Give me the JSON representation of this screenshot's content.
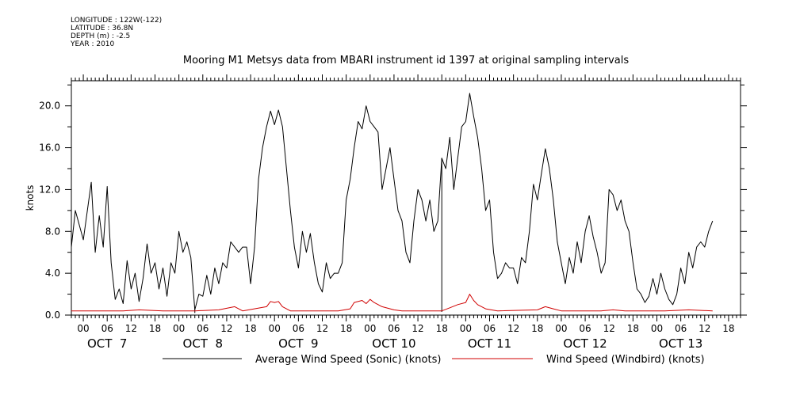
{
  "header": {
    "metadata": [
      "LONGITUDE : 122W(-122)",
      "LATITUDE : 36.8N",
      "DEPTH (m) : -2.5",
      "YEAR : 2010"
    ]
  },
  "chart_data": {
    "type": "line",
    "title": "Mooring M1 Metsys data from MBARI instrument id 1397 at original sampling intervals",
    "xlabel": "",
    "ylabel": "knots",
    "ylim": [
      0,
      22.4
    ],
    "yticks": [
      "0.0",
      "4.0",
      "8.0",
      "12.0",
      "16.0",
      "20.0"
    ],
    "ytick_values": [
      0,
      4,
      8,
      12,
      16,
      20
    ],
    "x_unit": "hours from OCT 7 00:00 (2010)",
    "xlim": [
      -3,
      165
    ],
    "xtick_labels": [
      "00",
      "06",
      "12",
      "18",
      "00",
      "06",
      "12",
      "18",
      "00",
      "06",
      "12",
      "18",
      "00",
      "06",
      "12",
      "18",
      "00",
      "06",
      "12",
      "18",
      "00",
      "06",
      "12",
      "18",
      "00",
      "06",
      "12",
      "18"
    ],
    "xtick_hours": [
      0,
      6,
      12,
      18,
      24,
      30,
      36,
      42,
      48,
      54,
      60,
      66,
      72,
      78,
      84,
      90,
      96,
      102,
      108,
      114,
      120,
      126,
      132,
      138,
      144,
      150,
      156,
      162
    ],
    "day_labels": [
      "OCT  7",
      "OCT  8",
      "OCT  9",
      "OCT 10",
      "OCT 11",
      "OCT 12",
      "OCT 13"
    ],
    "day_hours": [
      6,
      30,
      54,
      78,
      102,
      126,
      150
    ],
    "grid": false,
    "legend_position": "bottom",
    "series": [
      {
        "name": "Average Wind Speed (Sonic) (knots)",
        "color": "#000000",
        "points": [
          [
            -3,
            6.5
          ],
          [
            -2,
            10.0
          ],
          [
            0,
            7.2
          ],
          [
            2,
            12.7
          ],
          [
            3,
            6.0
          ],
          [
            4,
            9.5
          ],
          [
            5,
            6.5
          ],
          [
            6,
            12.3
          ],
          [
            7,
            5.0
          ],
          [
            8,
            1.5
          ],
          [
            9,
            2.5
          ],
          [
            10,
            1.1
          ],
          [
            11,
            5.2
          ],
          [
            12,
            2.5
          ],
          [
            13,
            4.0
          ],
          [
            14,
            1.3
          ],
          [
            15,
            3.5
          ],
          [
            16,
            6.8
          ],
          [
            17,
            4.0
          ],
          [
            18,
            5.0
          ],
          [
            19,
            2.5
          ],
          [
            20,
            4.5
          ],
          [
            21,
            1.8
          ],
          [
            22,
            5.0
          ],
          [
            23,
            4.0
          ],
          [
            24,
            8.0
          ],
          [
            25,
            6.0
          ],
          [
            26,
            7.0
          ],
          [
            27,
            5.5
          ],
          [
            28,
            0.5
          ],
          [
            29,
            2.0
          ],
          [
            30,
            1.8
          ],
          [
            31,
            3.8
          ],
          [
            32,
            2.0
          ],
          [
            33,
            4.5
          ],
          [
            34,
            3.0
          ],
          [
            35,
            5.0
          ],
          [
            36,
            4.5
          ],
          [
            37,
            7.0
          ],
          [
            38,
            6.5
          ],
          [
            39,
            6.0
          ],
          [
            40,
            6.5
          ],
          [
            41,
            6.5
          ],
          [
            42,
            3.0
          ],
          [
            43,
            6.5
          ],
          [
            44,
            13.0
          ],
          [
            45,
            16.0
          ],
          [
            46,
            18.0
          ],
          [
            47,
            19.5
          ],
          [
            48,
            18.2
          ],
          [
            49,
            19.6
          ],
          [
            50,
            18.0
          ],
          [
            51,
            14.0
          ],
          [
            52,
            10.0
          ],
          [
            53,
            6.5
          ],
          [
            54,
            4.5
          ],
          [
            55,
            8.0
          ],
          [
            56,
            6.0
          ],
          [
            57,
            7.8
          ],
          [
            58,
            5.0
          ],
          [
            59,
            3.0
          ],
          [
            60,
            2.2
          ],
          [
            61,
            5.0
          ],
          [
            62,
            3.5
          ],
          [
            63,
            4.0
          ],
          [
            64,
            4.0
          ],
          [
            65,
            5.0
          ],
          [
            66,
            11.0
          ],
          [
            67,
            13.0
          ],
          [
            68,
            16.0
          ],
          [
            69,
            18.5
          ],
          [
            70,
            17.8
          ],
          [
            71,
            20.0
          ],
          [
            72,
            18.5
          ],
          [
            73,
            18.0
          ],
          [
            74,
            17.5
          ],
          [
            75,
            12.0
          ],
          [
            76,
            14.0
          ],
          [
            77,
            16.0
          ],
          [
            78,
            13.0
          ],
          [
            79,
            10.0
          ],
          [
            80,
            9.0
          ],
          [
            81,
            6.0
          ],
          [
            82,
            5.0
          ],
          [
            83,
            9.0
          ],
          [
            84,
            12.0
          ],
          [
            85,
            11.0
          ],
          [
            86,
            9.0
          ],
          [
            87,
            11.0
          ],
          [
            88,
            8.0
          ],
          [
            89,
            9.0
          ],
          [
            90,
            15.0
          ],
          [
            91,
            14.0
          ],
          [
            92,
            17.0
          ],
          [
            93,
            12.0
          ],
          [
            94,
            15.0
          ],
          [
            95,
            18.0
          ],
          [
            96,
            18.5
          ],
          [
            97,
            21.2
          ],
          [
            98,
            19.0
          ],
          [
            99,
            17.0
          ],
          [
            100,
            14.0
          ],
          [
            101,
            10.0
          ],
          [
            102,
            11.0
          ],
          [
            103,
            6.0
          ],
          [
            104,
            3.5
          ],
          [
            105,
            4.0
          ],
          [
            106,
            5.0
          ],
          [
            107,
            4.5
          ],
          [
            108,
            4.5
          ],
          [
            109,
            3.0
          ],
          [
            110,
            5.5
          ],
          [
            111,
            5.0
          ],
          [
            112,
            8.0
          ],
          [
            113,
            12.5
          ],
          [
            114,
            11.0
          ],
          [
            115,
            13.5
          ],
          [
            116,
            15.9
          ],
          [
            117,
            14.0
          ],
          [
            118,
            11.0
          ],
          [
            119,
            7.0
          ],
          [
            120,
            5.0
          ],
          [
            121,
            3.0
          ],
          [
            122,
            5.5
          ],
          [
            123,
            4.0
          ],
          [
            124,
            7.0
          ],
          [
            125,
            5.0
          ],
          [
            126,
            8.0
          ],
          [
            127,
            9.5
          ],
          [
            128,
            7.5
          ],
          [
            129,
            6.0
          ],
          [
            130,
            4.0
          ],
          [
            131,
            5.0
          ],
          [
            132,
            12.0
          ],
          [
            133,
            11.5
          ],
          [
            134,
            10.0
          ],
          [
            135,
            11.0
          ],
          [
            136,
            9.0
          ],
          [
            137,
            8.0
          ],
          [
            138,
            5.0
          ],
          [
            139,
            2.5
          ],
          [
            140,
            2.0
          ],
          [
            141,
            1.2
          ],
          [
            142,
            1.8
          ],
          [
            143,
            3.5
          ],
          [
            144,
            2.0
          ],
          [
            145,
            4.0
          ],
          [
            146,
            2.5
          ],
          [
            147,
            1.5
          ],
          [
            148,
            1.0
          ],
          [
            149,
            2.0
          ],
          [
            150,
            4.5
          ],
          [
            151,
            3.0
          ],
          [
            152,
            6.0
          ],
          [
            153,
            4.5
          ],
          [
            154,
            6.5
          ],
          [
            155,
            7.0
          ],
          [
            156,
            6.5
          ],
          [
            157,
            8.0
          ],
          [
            158,
            9.0
          ]
        ],
        "drops": [
          [
            28,
            0.2
          ],
          [
            90,
            0.3
          ]
        ]
      },
      {
        "name": "Wind Speed (Windbird) (knots)",
        "color": "#d00000",
        "points": [
          [
            -3,
            0.4
          ],
          [
            10,
            0.4
          ],
          [
            14,
            0.5
          ],
          [
            20,
            0.4
          ],
          [
            28,
            0.4
          ],
          [
            34,
            0.5
          ],
          [
            38,
            0.8
          ],
          [
            40,
            0.4
          ],
          [
            46,
            0.8
          ],
          [
            47,
            1.3
          ],
          [
            48,
            1.2
          ],
          [
            49,
            1.3
          ],
          [
            50,
            0.8
          ],
          [
            52,
            0.4
          ],
          [
            64,
            0.4
          ],
          [
            67,
            0.6
          ],
          [
            68,
            1.2
          ],
          [
            70,
            1.4
          ],
          [
            71,
            1.1
          ],
          [
            72,
            1.5
          ],
          [
            73,
            1.2
          ],
          [
            75,
            0.8
          ],
          [
            78,
            0.5
          ],
          [
            80,
            0.4
          ],
          [
            90,
            0.4
          ],
          [
            92,
            0.7
          ],
          [
            94,
            1.0
          ],
          [
            96,
            1.2
          ],
          [
            97,
            2.0
          ],
          [
            98,
            1.4
          ],
          [
            99,
            1.0
          ],
          [
            101,
            0.6
          ],
          [
            104,
            0.4
          ],
          [
            114,
            0.5
          ],
          [
            116,
            0.8
          ],
          [
            118,
            0.6
          ],
          [
            120,
            0.4
          ],
          [
            130,
            0.4
          ],
          [
            133,
            0.5
          ],
          [
            136,
            0.4
          ],
          [
            146,
            0.4
          ],
          [
            152,
            0.5
          ],
          [
            158,
            0.4
          ]
        ]
      }
    ]
  }
}
